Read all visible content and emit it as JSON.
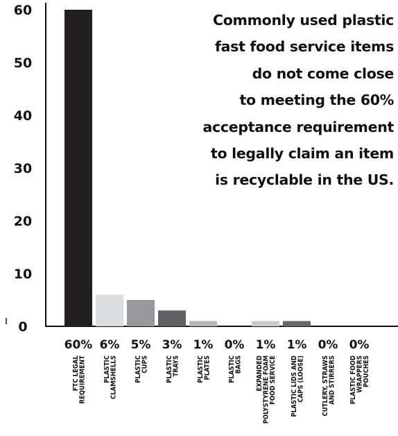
{
  "chart_data": {
    "type": "bar",
    "categories": [
      "FTC LEGAL REQUIREMENT",
      "PLASTIC CLAMSHELLS",
      "PLASTIC CUPS",
      "PLASTIC TRAYS",
      "PLASTIC PLATES",
      "PLASTIC BAGS",
      "EXPANDED POLYSTYRENE FOAM FOOD SERVICE",
      "PLASTIC LIDS AND CAPS (LOOSE)",
      "CUTLERY, STRAWS AND STIRRERS",
      "PLASTIC FOOD WRAPPERS POUCHES"
    ],
    "category_lines": [
      [
        "FTC LEGAL",
        "REQUIREMENT"
      ],
      [
        "PLASTIC",
        "CLAMSHELLS"
      ],
      [
        "PLASTIC",
        "CUPS"
      ],
      [
        "PLASTIC",
        "TRAYS"
      ],
      [
        "PLASTIC",
        "PLATES"
      ],
      [
        "PLASTIC",
        "BAGS"
      ],
      [
        "EXPANDED",
        "POLYSTYRENE FOAM",
        "FOOD SERVICE"
      ],
      [
        "PLASTIC LIDS AND",
        "CAPS (LOOSE)"
      ],
      [
        "CUTLERY, STRAWS",
        "AND STIRRERS"
      ],
      [
        "PLASTIC FOOD",
        "WRAPPERS",
        "POUCHES"
      ]
    ],
    "values": [
      60,
      6,
      5,
      3,
      1,
      0,
      1,
      1,
      0,
      0
    ],
    "value_labels": [
      "60%",
      "6%",
      "5%",
      "3%",
      "1%",
      "0%",
      "1%",
      "1%",
      "0%",
      "0%"
    ],
    "bar_colors": [
      "#231f20",
      "#dcdddf",
      "#98989b",
      "#616163",
      "#b7b7b9",
      "#ffffff",
      "#cbcbcd",
      "#69696b",
      "#ffffff",
      "#ffffff"
    ],
    "y_ticks": [
      0,
      10,
      20,
      30,
      40,
      50,
      60
    ],
    "ylim": [
      0,
      60
    ],
    "grid": false,
    "annotation_lines": [
      "Commonly used plastic",
      "fast food service items",
      "do not come close",
      "to meeting the 60%",
      "acceptance requirement",
      "to legally claim an item",
      "is recyclable in the US."
    ]
  }
}
